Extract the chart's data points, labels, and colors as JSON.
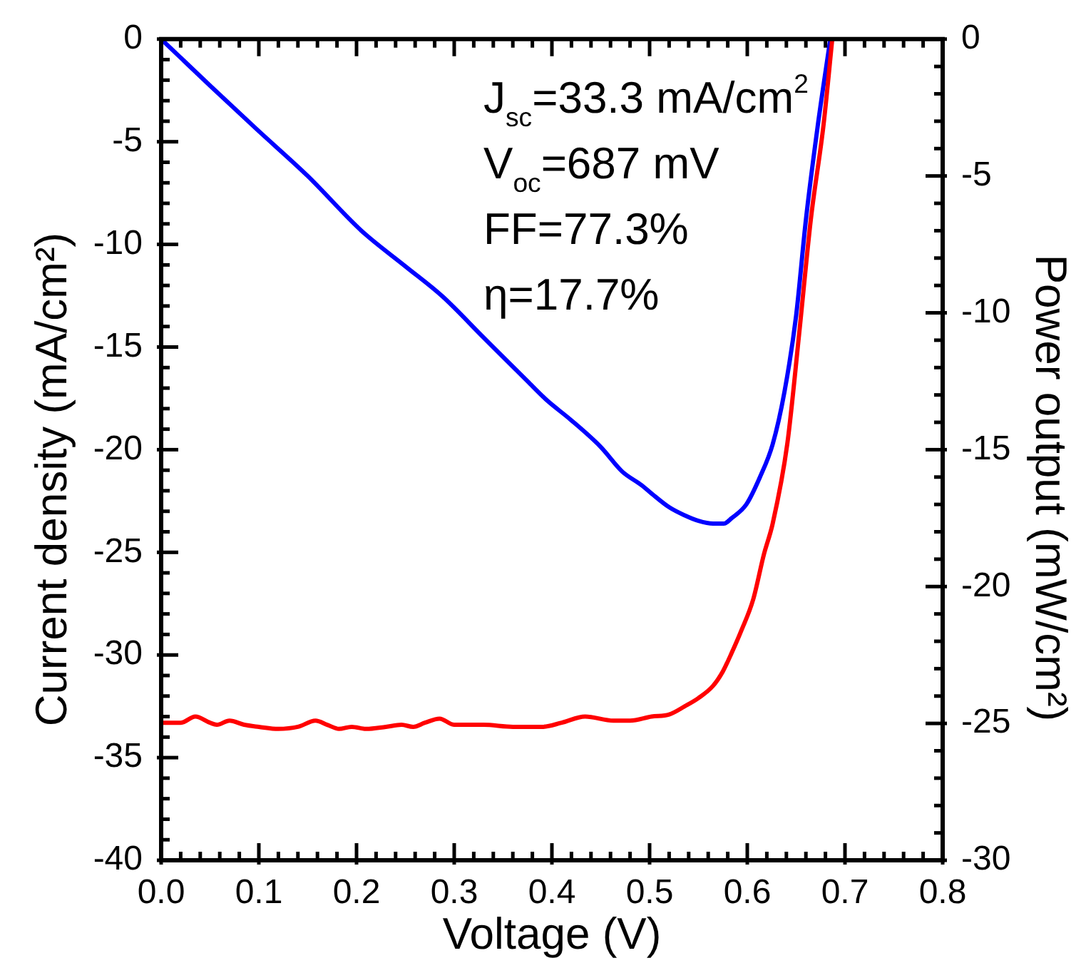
{
  "chart_data": {
    "type": "line",
    "xlabel": "Voltage (V)",
    "ylabel": "Current density (mA/cm²)",
    "y2label": "Power output (mW/cm²)",
    "annotations": [
      "J$_{sc}$=33.3 mA/cm$^{2}$",
      "V$_{oc}$=687 mV",
      "FF=77.3%",
      "η=17.7%"
    ],
    "xlim": [
      0,
      0.8
    ],
    "ylim": [
      -40,
      0
    ],
    "y2lim": [
      -30,
      0
    ],
    "xticks": [
      {
        "value": 0,
        "label": "0.0"
      },
      {
        "value": 0.02,
        "label": null
      },
      {
        "value": 0.04,
        "label": null
      },
      {
        "value": 0.06,
        "label": null
      },
      {
        "value": 0.08,
        "label": null
      },
      0.1,
      {
        "value": 0.12,
        "label": null
      },
      {
        "value": 0.14,
        "label": null
      },
      {
        "value": 0.16,
        "label": null
      },
      {
        "value": 0.18,
        "label": null
      },
      0.2,
      {
        "value": 0.22,
        "label": null
      },
      {
        "value": 0.24,
        "label": null
      },
      {
        "value": 0.26,
        "label": null
      },
      {
        "value": 0.28,
        "label": null
      },
      0.3,
      {
        "value": 0.32,
        "label": null
      },
      {
        "value": 0.34,
        "label": null
      },
      {
        "value": 0.36,
        "label": null
      },
      {
        "value": 0.38,
        "label": null
      },
      0.4,
      {
        "value": 0.42,
        "label": null
      },
      {
        "value": 0.44,
        "label": null
      },
      {
        "value": 0.46,
        "label": null
      },
      {
        "value": 0.48,
        "label": null
      },
      0.5,
      {
        "value": 0.52,
        "label": null
      },
      {
        "value": 0.54,
        "label": null
      },
      {
        "value": 0.56,
        "label": null
      },
      {
        "value": 0.58,
        "label": null
      },
      0.6,
      {
        "value": 0.62,
        "label": null
      },
      {
        "value": 0.64,
        "label": null
      },
      {
        "value": 0.66,
        "label": null
      },
      {
        "value": 0.68,
        "label": null
      },
      0.7,
      {
        "value": 0.72,
        "label": null
      },
      {
        "value": 0.74,
        "label": null
      },
      {
        "value": 0.76,
        "label": null
      },
      {
        "value": 0.78,
        "label": null
      },
      0.8
    ],
    "yticks": [
      -40,
      {
        "value": -39,
        "label": null
      },
      {
        "value": -38,
        "label": null
      },
      {
        "value": -37,
        "label": null
      },
      {
        "value": -36,
        "label": null
      },
      -35,
      {
        "value": -34,
        "label": null
      },
      {
        "value": -33,
        "label": null
      },
      {
        "value": -32,
        "label": null
      },
      {
        "value": -31,
        "label": null
      },
      -30,
      {
        "value": -29,
        "label": null
      },
      {
        "value": -28,
        "label": null
      },
      {
        "value": -27,
        "label": null
      },
      {
        "value": -26,
        "label": null
      },
      -25,
      {
        "value": -24,
        "label": null
      },
      {
        "value": -23,
        "label": null
      },
      {
        "value": -22,
        "label": null
      },
      {
        "value": -21,
        "label": null
      },
      -20,
      {
        "value": -19,
        "label": null
      },
      {
        "value": -18,
        "label": null
      },
      {
        "value": -17,
        "label": null
      },
      {
        "value": -16,
        "label": null
      },
      -15,
      {
        "value": -14,
        "label": null
      },
      {
        "value": -13,
        "label": null
      },
      {
        "value": -12,
        "label": null
      },
      {
        "value": -11,
        "label": null
      },
      -10,
      {
        "value": -9,
        "label": null
      },
      {
        "value": -8,
        "label": null
      },
      {
        "value": -7,
        "label": null
      },
      {
        "value": -6,
        "label": null
      },
      -5,
      {
        "value": -4,
        "label": null
      },
      {
        "value": -3,
        "label": null
      },
      {
        "value": -2,
        "label": null
      },
      {
        "value": -1,
        "label": null
      },
      0
    ],
    "y2ticks": [
      -30,
      {
        "value": -29,
        "label": null
      },
      {
        "value": -28,
        "label": null
      },
      {
        "value": -27,
        "label": null
      },
      {
        "value": -26,
        "label": null
      },
      -25,
      {
        "value": -24,
        "label": null
      },
      {
        "value": -23,
        "label": null
      },
      {
        "value": -22,
        "label": null
      },
      {
        "value": -21,
        "label": null
      },
      -20,
      {
        "value": -19,
        "label": null
      },
      {
        "value": -18,
        "label": null
      },
      {
        "value": -17,
        "label": null
      },
      {
        "value": -16,
        "label": null
      },
      -15,
      {
        "value": -14,
        "label": null
      },
      {
        "value": -13,
        "label": null
      },
      {
        "value": -12,
        "label": null
      },
      {
        "value": -11,
        "label": null
      },
      -10,
      {
        "value": -9,
        "label": null
      },
      {
        "value": -8,
        "label": null
      },
      {
        "value": -7,
        "label": null
      },
      {
        "value": -6,
        "label": null
      },
      -5,
      {
        "value": -4,
        "label": null
      },
      {
        "value": -3,
        "label": null
      },
      {
        "value": -2,
        "label": null
      },
      {
        "value": -1,
        "label": null
      },
      0
    ],
    "series": [
      {
        "color": "#ff0000",
        "x": [
          0,
          0.01,
          0.02,
          0.035,
          0.05,
          0.057,
          0.07,
          0.085,
          0.1,
          0.12,
          0.14,
          0.158,
          0.17,
          0.182,
          0.195,
          0.21,
          0.23,
          0.246,
          0.258,
          0.27,
          0.285,
          0.3,
          0.33,
          0.36,
          0.39,
          0.41,
          0.434,
          0.463,
          0.48,
          0.502,
          0.52,
          0.536,
          0.55,
          0.565,
          0.575,
          0.584,
          0.594,
          0.606,
          0.617,
          0.626,
          0.641,
          0.653,
          0.665,
          0.678,
          0.687
        ],
        "values": [
          -33.3,
          -33.3,
          -33.3,
          -33.0,
          -33.3,
          -33.4,
          -33.2,
          -33.4,
          -33.5,
          -33.6,
          -33.5,
          -33.2,
          -33.4,
          -33.6,
          -33.5,
          -33.6,
          -33.5,
          -33.4,
          -33.5,
          -33.3,
          -33.1,
          -33.4,
          -33.4,
          -33.5,
          -33.5,
          -33.3,
          -33.0,
          -33.2,
          -33.2,
          -33.0,
          -32.9,
          -32.5,
          -32.1,
          -31.5,
          -30.8,
          -29.9,
          -28.8,
          -27.3,
          -25.1,
          -23.6,
          -19.7,
          -14.4,
          -8.8,
          -4.2,
          0
        ]
      },
      {
        "color": "#0000ff",
        "axis": "y2",
        "x": [
          0,
          0.05,
          0.098,
          0.15,
          0.205,
          0.25,
          0.288,
          0.33,
          0.375,
          0.395,
          0.419,
          0.45,
          0.472,
          0.492,
          0.502,
          0.52,
          0.536,
          0.55,
          0.565,
          0.576,
          0.584,
          0.599,
          0.613,
          0.626,
          0.638,
          0.65,
          0.66,
          0.672,
          0.685
        ],
        "values": [
          0,
          -1.7,
          -3.3,
          -5.0,
          -7.0,
          -8.3,
          -9.4,
          -10.9,
          -12.5,
          -13.2,
          -13.9,
          -14.9,
          -15.8,
          -16.3,
          -16.6,
          -17.1,
          -17.4,
          -17.6,
          -17.7,
          -17.7,
          -17.5,
          -17.0,
          -16.0,
          -14.8,
          -12.9,
          -10.1,
          -6.6,
          -3.2,
          0
        ]
      }
    ]
  }
}
